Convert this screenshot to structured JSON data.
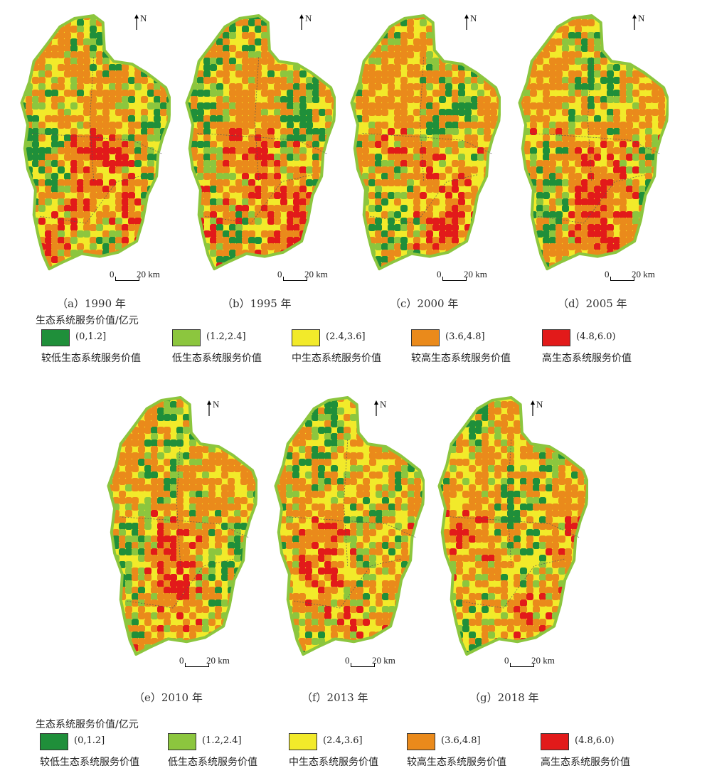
{
  "panels": [
    {
      "caption": "（a）1990 年",
      "intensity": 0.62
    },
    {
      "caption": "（b）1995 年",
      "intensity": 0.8
    },
    {
      "caption": "（c）2000 年",
      "intensity": 0.45
    },
    {
      "caption": "（d）2005 年",
      "intensity": 0.6
    },
    {
      "caption": "（e）2010 年",
      "intensity": 0.48
    },
    {
      "caption": "（f）2013 年",
      "intensity": 0.4
    },
    {
      "caption": "（g）2018 年",
      "intensity": 0.3
    }
  ],
  "north_label": "N",
  "scale": {
    "zero": "0",
    "distance": "20 km"
  },
  "legend": {
    "title": "生态系统服务价值/亿元",
    "classes": [
      {
        "range": "(0,1.2]",
        "name": "较低生态系统服务价值",
        "color": "#1f8f3a"
      },
      {
        "range": "(1.2,2.4]",
        "name": "低生态系统服务价值",
        "color": "#8cc63e"
      },
      {
        "range": "(2.4,3.6]",
        "name": "中生态系统服务价值",
        "color": "#f2ea2a"
      },
      {
        "range": "(3.6,4.8]",
        "name": "较高生态系统服务价值",
        "color": "#ea8a1b"
      },
      {
        "range": "(4.8,6.0)",
        "name": "高生态系统服务价值",
        "color": "#e21a1a"
      }
    ]
  }
}
